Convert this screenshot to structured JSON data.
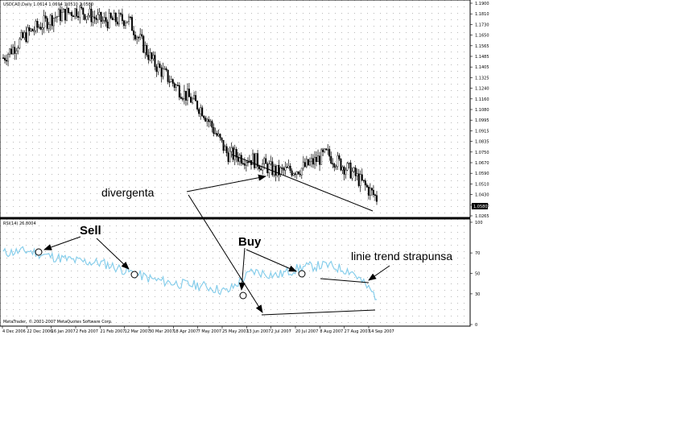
{
  "main_chart": {
    "header": "USDCAD,Daily  1.0614 1.0694 1.0510 1.0580",
    "price_ticks": [
      "1.1900",
      "1.1810",
      "1.1730",
      "1.1650",
      "1.1565",
      "1.1485",
      "1.1405",
      "1.1325",
      "1.1240",
      "1.1160",
      "1.1080",
      "1.0995",
      "1.0915",
      "1.0835",
      "1.0750",
      "1.0670",
      "1.0590",
      "1.0510",
      "1.0430",
      "1.0350",
      "1.0265"
    ],
    "last_price": "1.0580"
  },
  "rsi_panel": {
    "header": "RSI(14) 26.8004",
    "levels": [
      "100",
      "70",
      "50",
      "30",
      "0"
    ],
    "copyright": "MetaTrader, © 2001-2007 MetaQuotes Software Corp."
  },
  "time_axis": [
    "4 Dec 2006",
    "22 Dec 2006",
    "16 Jan 2007",
    "2 Feb 2007",
    "21 Feb 2007",
    "12 Mar 2007",
    "30 Mar 2007",
    "18 Apr 2007",
    "7 May 2007",
    "25 May 2007",
    "13 Jun 2007",
    "2 Jul 2007",
    "20 Jul 2007",
    "8 Aug 2007",
    "27 Aug 2007",
    "14 Sep 2007"
  ],
  "annotations": {
    "divergenta": "divergenta",
    "sell": "Sell",
    "buy": "Buy",
    "trend": "linie trend strapunsa"
  },
  "chart_data": [
    {
      "type": "candlestick",
      "series": [
        {
          "name": "USDCAD,Daily"
        }
      ],
      "x": [
        "4 Dec 2006",
        "22 Dec 2006",
        "16 Jan 2007",
        "2 Feb 2007",
        "21 Feb 2007",
        "12 Mar 2007",
        "30 Mar 2007",
        "18 Apr 2007",
        "7 May 2007",
        "25 May 2007",
        "13 Jun 2007",
        "2 Jul 2007",
        "20 Jul 2007",
        "8 Aug 2007",
        "27 Aug 2007",
        "14 Sep 2007"
      ],
      "approx_close": [
        1.148,
        1.167,
        1.179,
        1.185,
        1.176,
        1.178,
        1.145,
        1.125,
        1.108,
        1.074,
        1.07,
        1.06,
        1.063,
        1.074,
        1.06,
        1.04
      ],
      "ylim": [
        1.0265,
        1.19
      ],
      "last_value": 1.058
    },
    {
      "type": "line",
      "series": [
        {
          "name": "RSI(14)"
        }
      ],
      "x": [
        "4 Dec 2006",
        "22 Dec 2006",
        "16 Jan 2007",
        "2 Feb 2007",
        "21 Feb 2007",
        "12 Mar 2007",
        "30 Mar 2007",
        "18 Apr 2007",
        "7 May 2007",
        "25 May 2007",
        "13 Jun 2007",
        "2 Jul 2007",
        "20 Jul 2007",
        "8 Aug 2007",
        "27 Aug 2007",
        "14 Sep 2007"
      ],
      "values": [
        70,
        72,
        66,
        62,
        60,
        52,
        44,
        40,
        38,
        32,
        52,
        48,
        56,
        58,
        52,
        27
      ],
      "levels": [
        30,
        70
      ],
      "ylim": [
        0,
        100
      ]
    }
  ],
  "colors": {
    "rsi_line": "#87CEEB",
    "candles": "#000000",
    "grid": "#b8b8b8"
  }
}
